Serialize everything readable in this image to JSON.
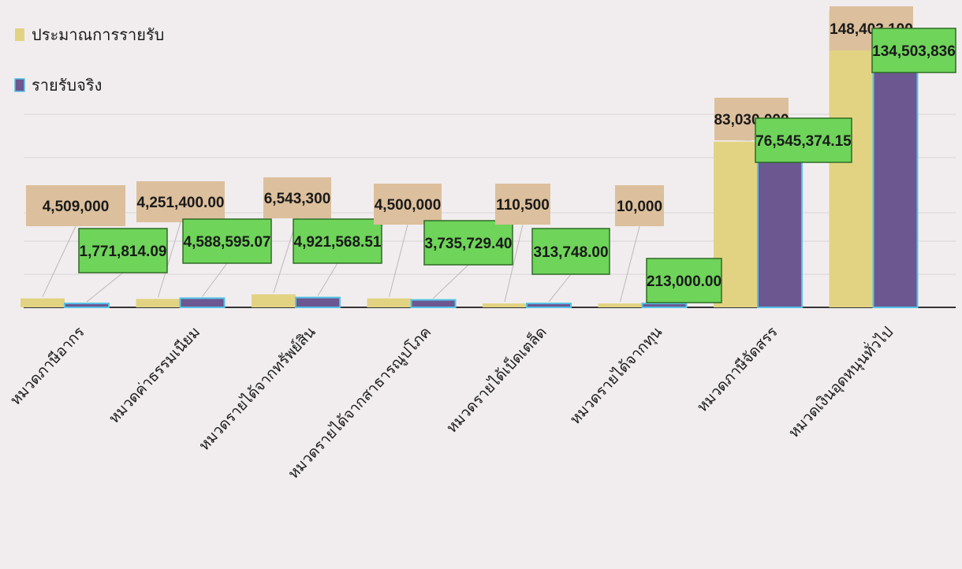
{
  "chart_data": {
    "type": "bar",
    "categories": [
      "หมวดภาษีอากร",
      "หมวดค่าธรรมเนียม",
      "หมวดรายได้จากทรัพย์สิน",
      "หมวดรายได้จากสาธารณูปโภค",
      "หมวดรายได้เบ็ดเตล็ด",
      "หมวดรายได้จากทุน",
      "หมวดภาษีจัดสรร",
      "หมวดเงินอุดหนุนทั่วไป"
    ],
    "series": [
      {
        "name": "ประมาณการรายรับ",
        "color": "#e2d383",
        "values": [
          4509000,
          4251400,
          6543300,
          4500000,
          110500,
          10000,
          83030000,
          148403100
        ],
        "labels": [
          "4,509,000",
          "4,251,400.00",
          "6,543,300",
          "4,500,000",
          "110,500",
          "10,000",
          "83,030,000",
          "148,403,100"
        ]
      },
      {
        "name": "รายรับจริง",
        "color": "#6c5791",
        "values": [
          1771814.09,
          4588595.07,
          4921568.51,
          3735729.4,
          313748,
          213000,
          76545374.15,
          134503836
        ],
        "labels": [
          "1,771,814.09",
          "4,588,595.07",
          "4,921,568.51",
          "3,735,729.40",
          "313,748.00",
          "213,000.00",
          "76,545,374.15",
          "134,503,836"
        ]
      }
    ],
    "ylim": [
      0,
      150000000
    ],
    "legend_position": "top-left",
    "grid": true
  },
  "colors": {
    "background": "#f1edee",
    "label_box_estimate": "#dcbf9c",
    "label_box_actual": "#6fd45a",
    "axis": "#333333",
    "bar_outline": "#55c3e6"
  }
}
